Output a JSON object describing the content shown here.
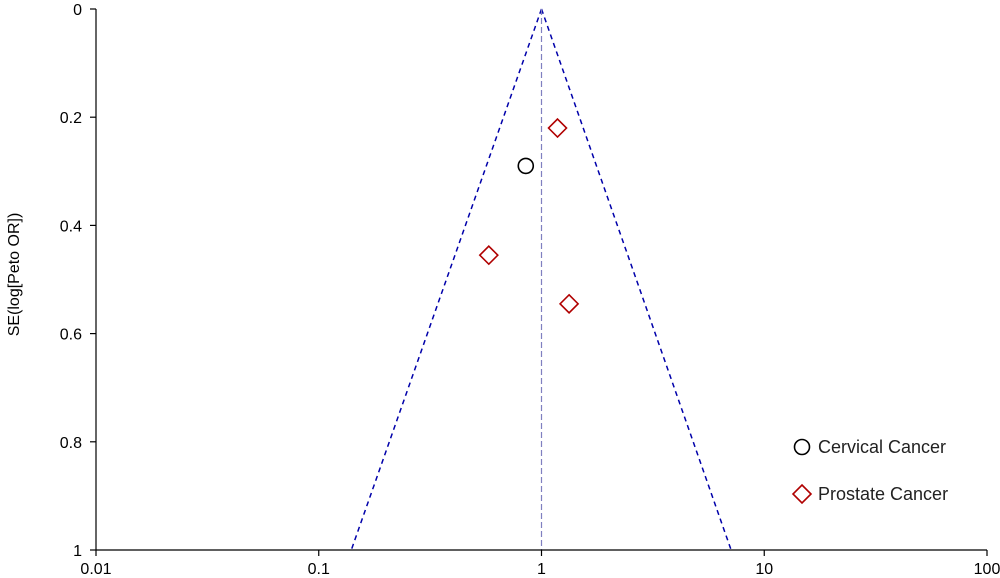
{
  "chart_data": {
    "type": "scatter",
    "subtype": "funnel-plot",
    "xlabel": "",
    "ylabel": "SE(log[Peto OR])",
    "x_scale": "log",
    "xlim": [
      0.01,
      100
    ],
    "ylim": [
      0,
      1
    ],
    "y_inverted": true,
    "x_ticks": [
      0.01,
      0.1,
      1,
      10,
      100
    ],
    "x_tick_labels": [
      "0.01",
      "0.1",
      "1",
      "10",
      "100"
    ],
    "y_ticks": [
      0,
      0.2,
      0.4,
      0.6,
      0.8,
      1
    ],
    "y_tick_labels": [
      "0",
      "0.2",
      "0.4",
      "0.6",
      "0.8",
      "1"
    ],
    "pooled_estimate": 1.0,
    "funnel_bottom_x": [
      0.14,
      7.1
    ],
    "grid": false,
    "legend_position": "bottom-right",
    "colors": {
      "funnel": "#0000aa",
      "center_line": "#8080c0",
      "cervical": "#000000",
      "prostate": "#b00000"
    },
    "series": [
      {
        "name": "Cervical Cancer",
        "marker": "circle",
        "points": [
          {
            "x": 0.85,
            "y": 0.29
          }
        ]
      },
      {
        "name": "Prostate Cancer",
        "marker": "diamond",
        "points": [
          {
            "x": 1.18,
            "y": 0.22
          },
          {
            "x": 0.58,
            "y": 0.455
          },
          {
            "x": 1.33,
            "y": 0.545
          }
        ]
      }
    ]
  }
}
